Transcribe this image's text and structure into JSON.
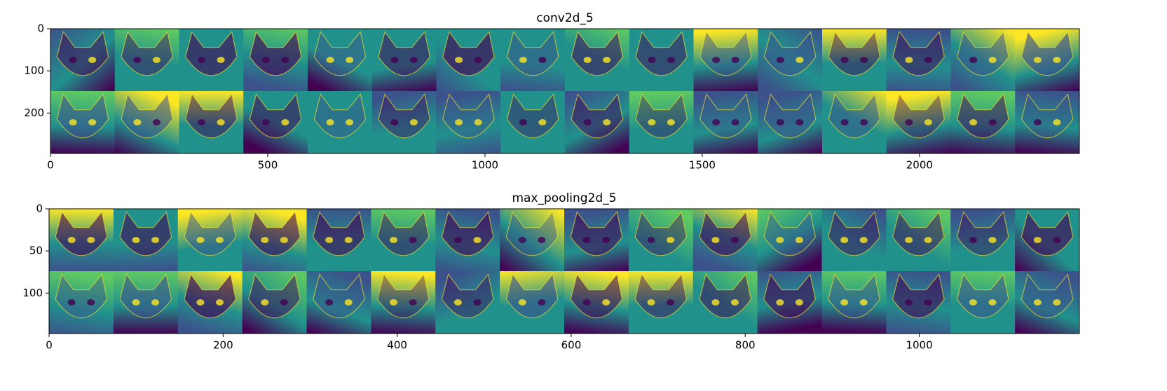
{
  "chart_data": [
    {
      "type": "image",
      "title": "conv2d_5",
      "colormap": "viridis",
      "y_inverted": true,
      "xlim": [
        0,
        2368
      ],
      "ylim": [
        0,
        296
      ],
      "xticks": [
        0,
        500,
        1000,
        1500,
        2000
      ],
      "yticks": [
        0,
        100,
        200
      ]
    },
    {
      "type": "image",
      "title": "max_pooling2d_5",
      "colormap": "viridis",
      "y_inverted": true,
      "xlim": [
        0,
        1184
      ],
      "ylim": [
        0,
        148
      ],
      "xticks": [
        0,
        200,
        400,
        600,
        800,
        1000
      ],
      "yticks": [
        0,
        50,
        100
      ]
    }
  ]
}
